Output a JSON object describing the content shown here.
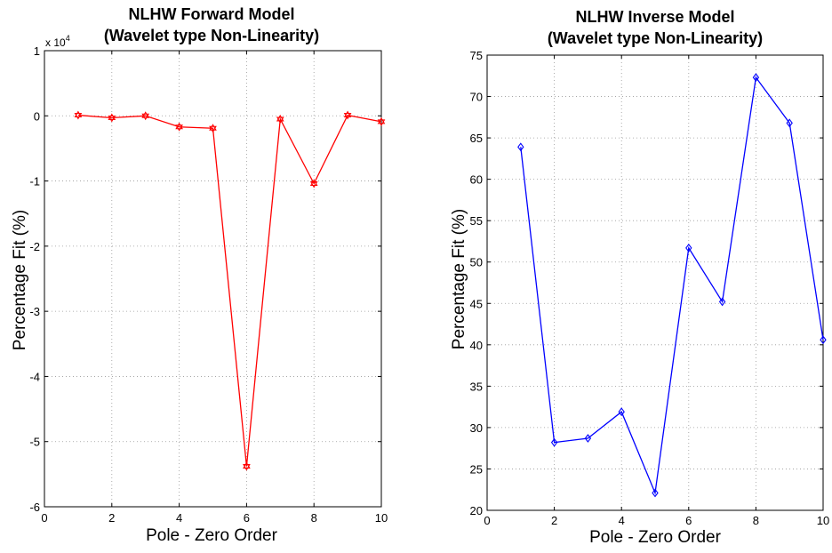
{
  "chart_data": [
    {
      "type": "line",
      "title": [
        "NLHW Forward Model",
        "(Wavelet type Non-Linearity)"
      ],
      "xlabel": "Pole - Zero Order",
      "ylabel": "Percentage Fit (%)",
      "y_multiplier": {
        "base": "x 10",
        "exponent": "4"
      },
      "xlim": [
        0,
        10
      ],
      "ylim": [
        -6,
        1
      ],
      "xticks": [
        0,
        2,
        4,
        6,
        8,
        10
      ],
      "yticks": [
        1,
        0,
        -1,
        -2,
        -3,
        -4,
        -5,
        -6
      ],
      "grid": true,
      "marker": "hexagram",
      "color": "#ff0000",
      "series": [
        {
          "x": [
            1,
            2,
            3,
            4,
            5,
            6,
            7,
            8,
            9,
            10
          ],
          "y": [
            0.01,
            -0.03,
            0.0,
            -0.17,
            -0.19,
            -5.38,
            -0.05,
            -1.04,
            0.01,
            -0.09
          ]
        }
      ]
    },
    {
      "type": "line",
      "title": [
        "NLHW Inverse Model",
        "(Wavelet type Non-Linearity)"
      ],
      "xlabel": "Pole - Zero Order",
      "ylabel": "Percentage Fit (%)",
      "xlim": [
        0,
        10
      ],
      "ylim": [
        20,
        75
      ],
      "xticks": [
        0,
        2,
        4,
        6,
        8,
        10
      ],
      "yticks": [
        75,
        70,
        65,
        60,
        55,
        50,
        45,
        40,
        35,
        30,
        25,
        20
      ],
      "grid": true,
      "marker": "diamond",
      "color": "#0000ff",
      "series": [
        {
          "x": [
            1,
            2,
            3,
            4,
            5,
            6,
            7,
            8,
            9,
            10
          ],
          "y": [
            63.9,
            28.2,
            28.7,
            31.9,
            22.1,
            51.7,
            45.2,
            72.3,
            66.8,
            40.6
          ]
        }
      ]
    }
  ]
}
